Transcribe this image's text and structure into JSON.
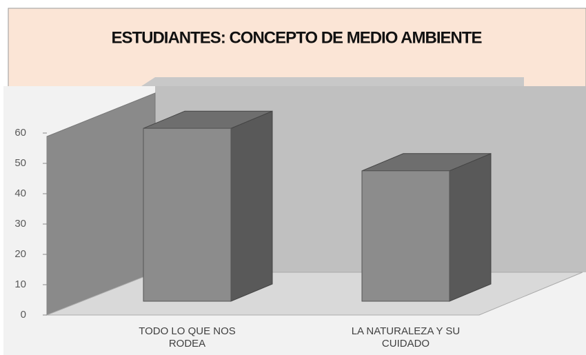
{
  "chart_data": {
    "type": "bar3d",
    "title": "ESTUDIANTES: CONCEPTO DE MEDIO AMBIENTE",
    "categories": [
      "TODO LO QUE NOS RODEA",
      "LA NATURALEZA Y SU CUIDADO"
    ],
    "values": [
      57,
      43
    ],
    "color": "#8c8c8c",
    "ylim": [
      0,
      60
    ],
    "yticks": [
      0,
      10,
      20,
      30,
      40,
      50,
      60
    ]
  }
}
